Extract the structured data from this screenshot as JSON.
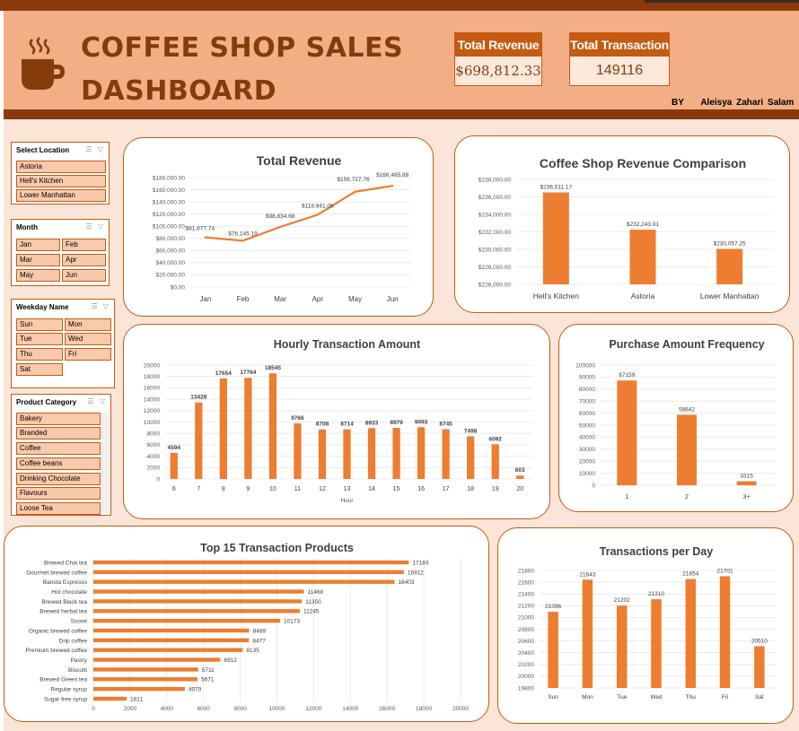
{
  "header": {
    "title_line1": "COFFEE SHOP SALES",
    "title_line2": "DASHBOARD",
    "by_label": "BY",
    "author": "Aleisya Zahari Salam"
  },
  "kpis": {
    "revenue_label": "Total Revenue",
    "revenue_value": "$698,812.33",
    "transaction_label": "Total Transaction",
    "transaction_value": "149116"
  },
  "slicers": {
    "location": {
      "title": "Select Location",
      "items": [
        "Astoria",
        "Hell's Kitchen",
        "Lower Manhattan"
      ]
    },
    "month": {
      "title": "Month",
      "items": [
        "Jan",
        "Feb",
        "Mar",
        "Apr",
        "May",
        "Jun"
      ]
    },
    "weekday": {
      "title": "Weekday Name",
      "items": [
        "Sun",
        "Mon",
        "Tue",
        "Wed",
        "Thu",
        "Fri",
        "Sat"
      ]
    },
    "category": {
      "title": "Product Category",
      "items": [
        "Bakery",
        "Branded",
        "Coffee",
        "Coffee beans",
        "Drinking Chocolate",
        "Flavours",
        "Loose Tea"
      ]
    }
  },
  "colors": {
    "accent": "#ed7d31",
    "brand_dark": "#843c0c",
    "header_bg": "#f4ae86",
    "page_bg": "#fbe5d8"
  },
  "chart_data": [
    {
      "id": "total_revenue",
      "type": "line",
      "title": "Total Revenue",
      "categories": [
        "Jan",
        "Feb",
        "Mar",
        "Apr",
        "May",
        "Jun"
      ],
      "values": [
        81677.74,
        76145.19,
        98834.68,
        118941.08,
        156727.76,
        166485.88
      ],
      "labels": [
        "$81,677.74",
        "$76,145.19",
        "$98,834.68",
        "$118,941.08",
        "$156,727.76",
        "$166,485.88"
      ],
      "ylim": [
        0,
        180000
      ],
      "yticks": [
        "$0.00",
        "$20,000.00",
        "$40,000.00",
        "$60,000.00",
        "$80,000.00",
        "$100,000.00",
        "$120,000.00",
        "$140,000.00",
        "$160,000.00",
        "$180,000.00"
      ]
    },
    {
      "id": "store_revenue",
      "type": "bar",
      "title": "Coffee Shop Revenue Comparison",
      "categories": [
        "Hell's Kitchen",
        "Astoria",
        "Lower Manhattan"
      ],
      "values": [
        236511.17,
        232243.91,
        230057.25
      ],
      "labels": [
        "$236,511.17",
        "$232,243.91",
        "$230,057.25"
      ],
      "ylim": [
        226000,
        238000
      ],
      "yticks": [
        "$226,000.00",
        "$228,000.00",
        "$230,000.00",
        "$232,000.00",
        "$234,000.00",
        "$236,000.00",
        "$238,000.00"
      ]
    },
    {
      "id": "hourly",
      "type": "bar",
      "title": "Hourly Transaction Amount",
      "xlabel": "Hour",
      "categories": [
        "6",
        "7",
        "8",
        "9",
        "10",
        "11",
        "12",
        "13",
        "14",
        "15",
        "16",
        "17",
        "18",
        "19",
        "20"
      ],
      "values": [
        4594,
        13428,
        17654,
        17764,
        18545,
        9766,
        8708,
        8714,
        8933,
        8979,
        9093,
        8745,
        7498,
        6092,
        603
      ],
      "ylim": [
        0,
        20000
      ],
      "yticks": [
        "0",
        "2000",
        "4000",
        "6000",
        "8000",
        "10000",
        "12000",
        "14000",
        "16000",
        "18000",
        "20000"
      ]
    },
    {
      "id": "purchase_freq",
      "type": "bar",
      "title": "Purchase Amount Frequency",
      "categories": [
        "1",
        "2",
        "3+"
      ],
      "values": [
        87159,
        58642,
        3315
      ],
      "ylim": [
        0,
        100000
      ],
      "yticks": [
        "0",
        "10000",
        "20000",
        "30000",
        "40000",
        "50000",
        "60000",
        "70000",
        "80000",
        "90000",
        "100000"
      ]
    },
    {
      "id": "top_products",
      "type": "bar",
      "orientation": "horizontal",
      "title": "Top 15 Transaction Products",
      "categories": [
        "Brewed Chai tea",
        "Gourmet brewed coffee",
        "Barista Espresso",
        "Hot chocolate",
        "Brewed Black tea",
        "Brewed herbal tea",
        "Scone",
        "Organic brewed coffee",
        "Drip coffee",
        "Premium brewed coffee",
        "Pastry",
        "Biscotti",
        "Brewed Green tea",
        "Regular syrup",
        "Sugar free syrup"
      ],
      "values": [
        17183,
        16912,
        16403,
        11468,
        11350,
        11245,
        10173,
        8489,
        8477,
        8135,
        6912,
        5711,
        5671,
        4979,
        1811
      ],
      "xlim": [
        0,
        20000
      ],
      "xticks": [
        "0",
        "2000",
        "4000",
        "6000",
        "8000",
        "10000",
        "12000",
        "14000",
        "16000",
        "18000",
        "20000"
      ]
    },
    {
      "id": "per_day",
      "type": "bar",
      "title": "Transactions per Day",
      "categories": [
        "Sun",
        "Mon",
        "Tue",
        "Wed",
        "Thu",
        "Fri",
        "Sat"
      ],
      "values": [
        21096,
        21643,
        21202,
        21310,
        21654,
        21701,
        20510
      ],
      "ylim": [
        19800,
        21800
      ],
      "yticks": [
        "19800",
        "20000",
        "20200",
        "20400",
        "20600",
        "20800",
        "21000",
        "21200",
        "21400",
        "21600",
        "21800"
      ]
    }
  ]
}
